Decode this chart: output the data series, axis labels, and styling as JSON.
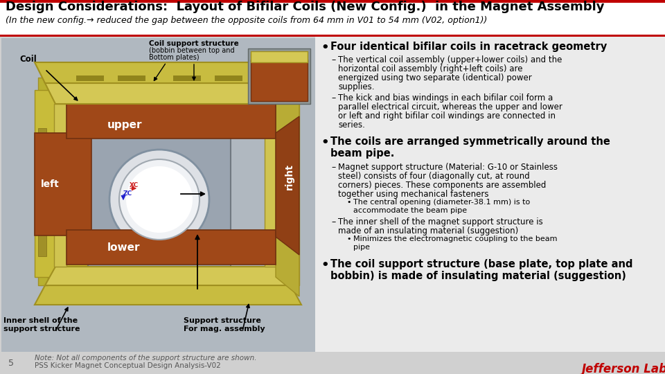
{
  "title": "Design Considerations:  Layout of Bifilar Coils (New Config.)  in the Magnet Assembly",
  "subtitle": "(In the new config.→ reduced the gap between the opposite coils from 64 mm in V01 to 54 mm (V02, option1))",
  "title_bar_color": "#c00000",
  "slide_bg": "#d0d0d0",
  "image_bg": "#b8bec8",
  "right_panel_bg": "#e8e8e8",
  "bullet1_header": "Four identical bifilar coils in racetrack geometry",
  "bullet2_header_line1": "The coils are arranged symmetrically around the",
  "bullet2_header_line2": "beam pipe.",
  "bullet3_header_line1": "The coil support structure (base plate, top plate and",
  "bullet3_header_line2": "bobbin) is made of insulating material (suggestion)",
  "footer_note": "Note: Not all components of the support structure are shown.",
  "footer_title": "PSS Kicker Magnet Conceptual Design Analysis-V02",
  "footer_page": "5",
  "jlab_color": "#c00000"
}
